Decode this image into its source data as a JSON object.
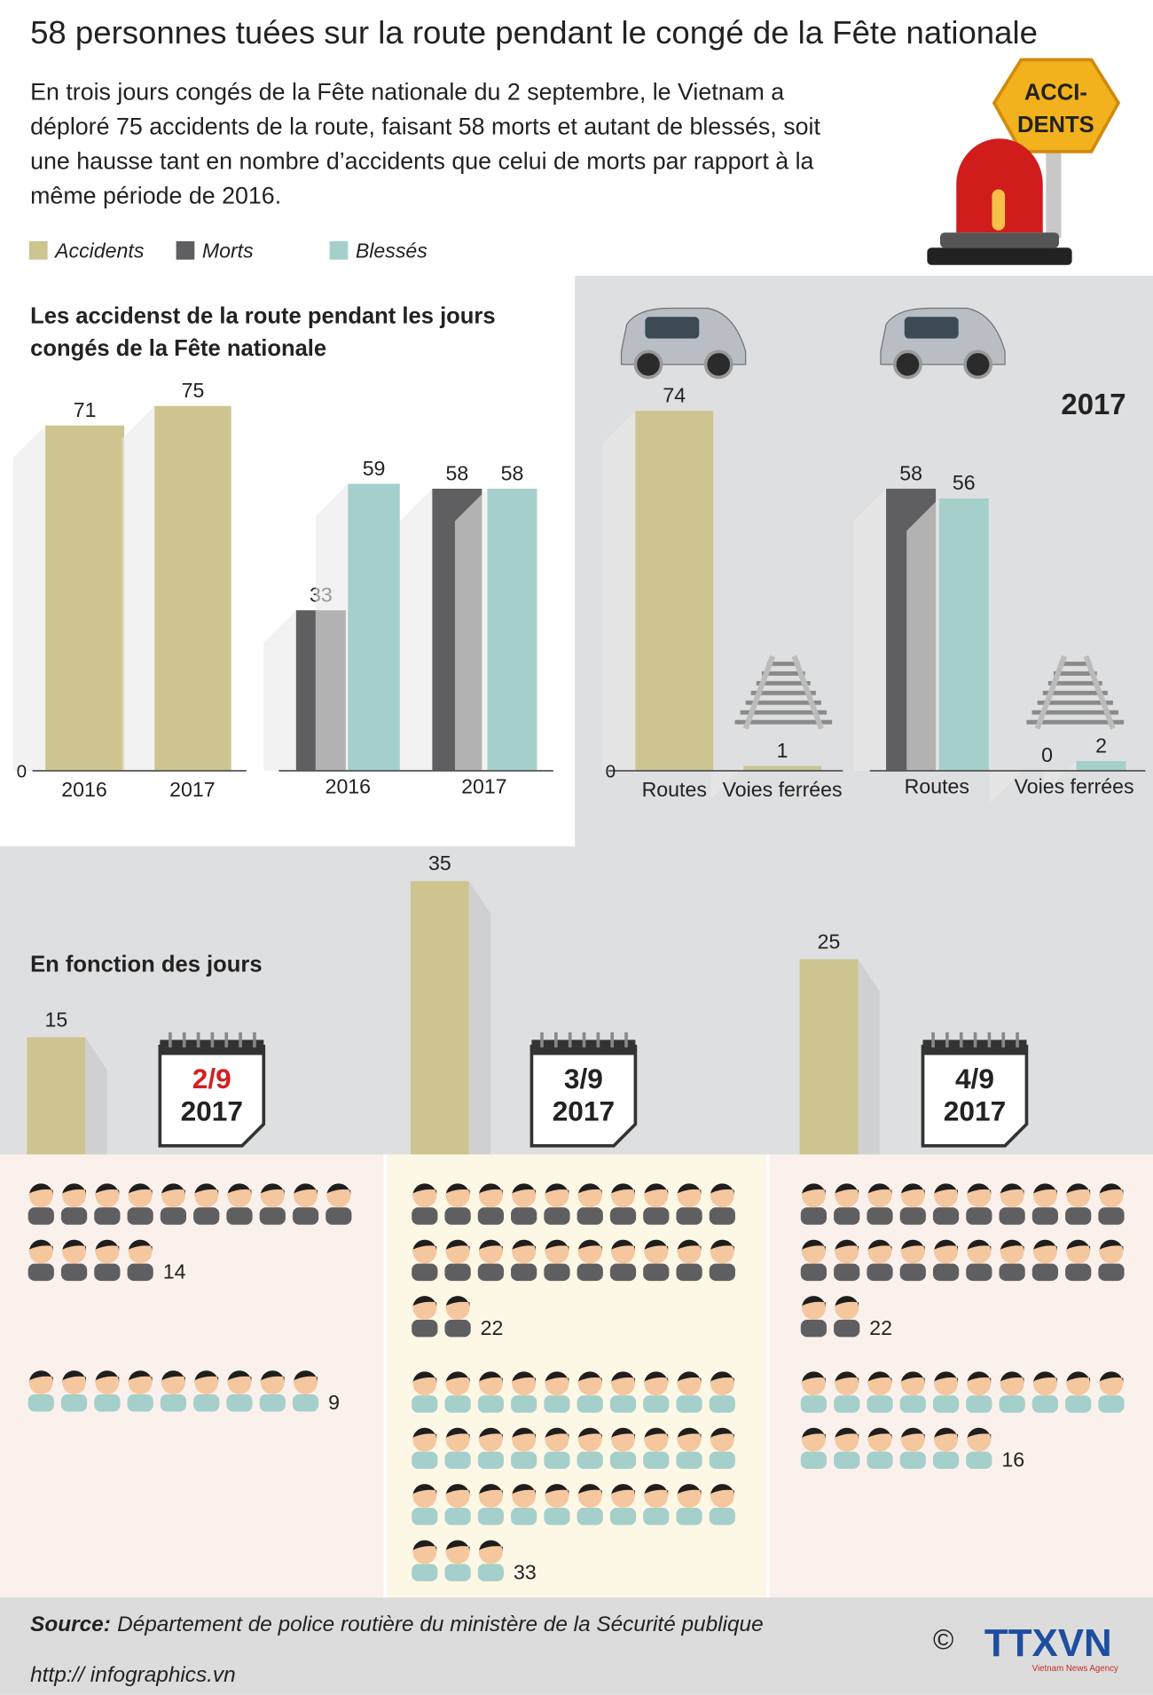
{
  "title": "58 personnes tuées sur la route pendant le congé de la Fête nationale",
  "intro": [
    "En trois jours congés de la Fête nationale du 2 septembre, le Vietnam a",
    "déploré 75 accidents de la route, faisant 58 morts et autant de blessés, soit",
    "une hausse tant en nombre d’accidents que celui de morts par rapport à la",
    "même période de 2016."
  ],
  "sign": [
    "ACCI-",
    "DENTS"
  ],
  "chart_data": [
    {
      "type": "bar",
      "title": [
        "Les accidenst de la route pendant les jours",
        "congés de la Fête nationale"
      ],
      "categories": [
        "2016",
        "2017"
      ],
      "series": [
        {
          "name": "Accidents",
          "color": "#cdc48f",
          "values": [
            71,
            75
          ]
        },
        {
          "name": "Morts",
          "color": "#5f5f61",
          "values": [
            33,
            58
          ]
        },
        {
          "name": "Blessés",
          "color": "#a5cfcb",
          "values": [
            59,
            58
          ]
        }
      ],
      "ylim": [
        0,
        80
      ],
      "yticks": [
        0
      ]
    },
    {
      "type": "bar",
      "subtitle": "2017",
      "categories": [
        "Routes",
        "Voies ferrées"
      ],
      "series": [
        {
          "name": "Accidents",
          "color": "#cdc48f",
          "values": [
            74,
            1
          ]
        },
        {
          "name": "Morts",
          "color": "#5f5f61",
          "values": [
            58,
            0
          ]
        },
        {
          "name": "Blessés",
          "color": "#a5cfcb",
          "values": [
            56,
            2
          ]
        }
      ],
      "ylim": [
        0,
        80
      ],
      "yticks": [
        0
      ]
    },
    {
      "type": "days",
      "title": "En fonction des jours",
      "categories": [
        "2/9",
        "3/9",
        "4/9"
      ],
      "year": "2017",
      "series": [
        {
          "name": "Accidents",
          "color": "#cdc48f",
          "values": [
            15,
            35,
            25
          ]
        },
        {
          "name": "Morts",
          "color": "#5f5f61",
          "values": [
            14,
            22,
            22
          ]
        },
        {
          "name": "Blessés",
          "color": "#a5cfcb",
          "values": [
            9,
            33,
            16
          ]
        }
      ],
      "ylim": [
        0,
        40
      ]
    }
  ],
  "footer": {
    "source_label": "Source:",
    "source": "Département de police routière du ministère de la Sécurité publique",
    "url": "http:// infographics.vn",
    "copyright": "©",
    "logo": "TTXVN",
    "agency": "Vietnam News Agency"
  }
}
